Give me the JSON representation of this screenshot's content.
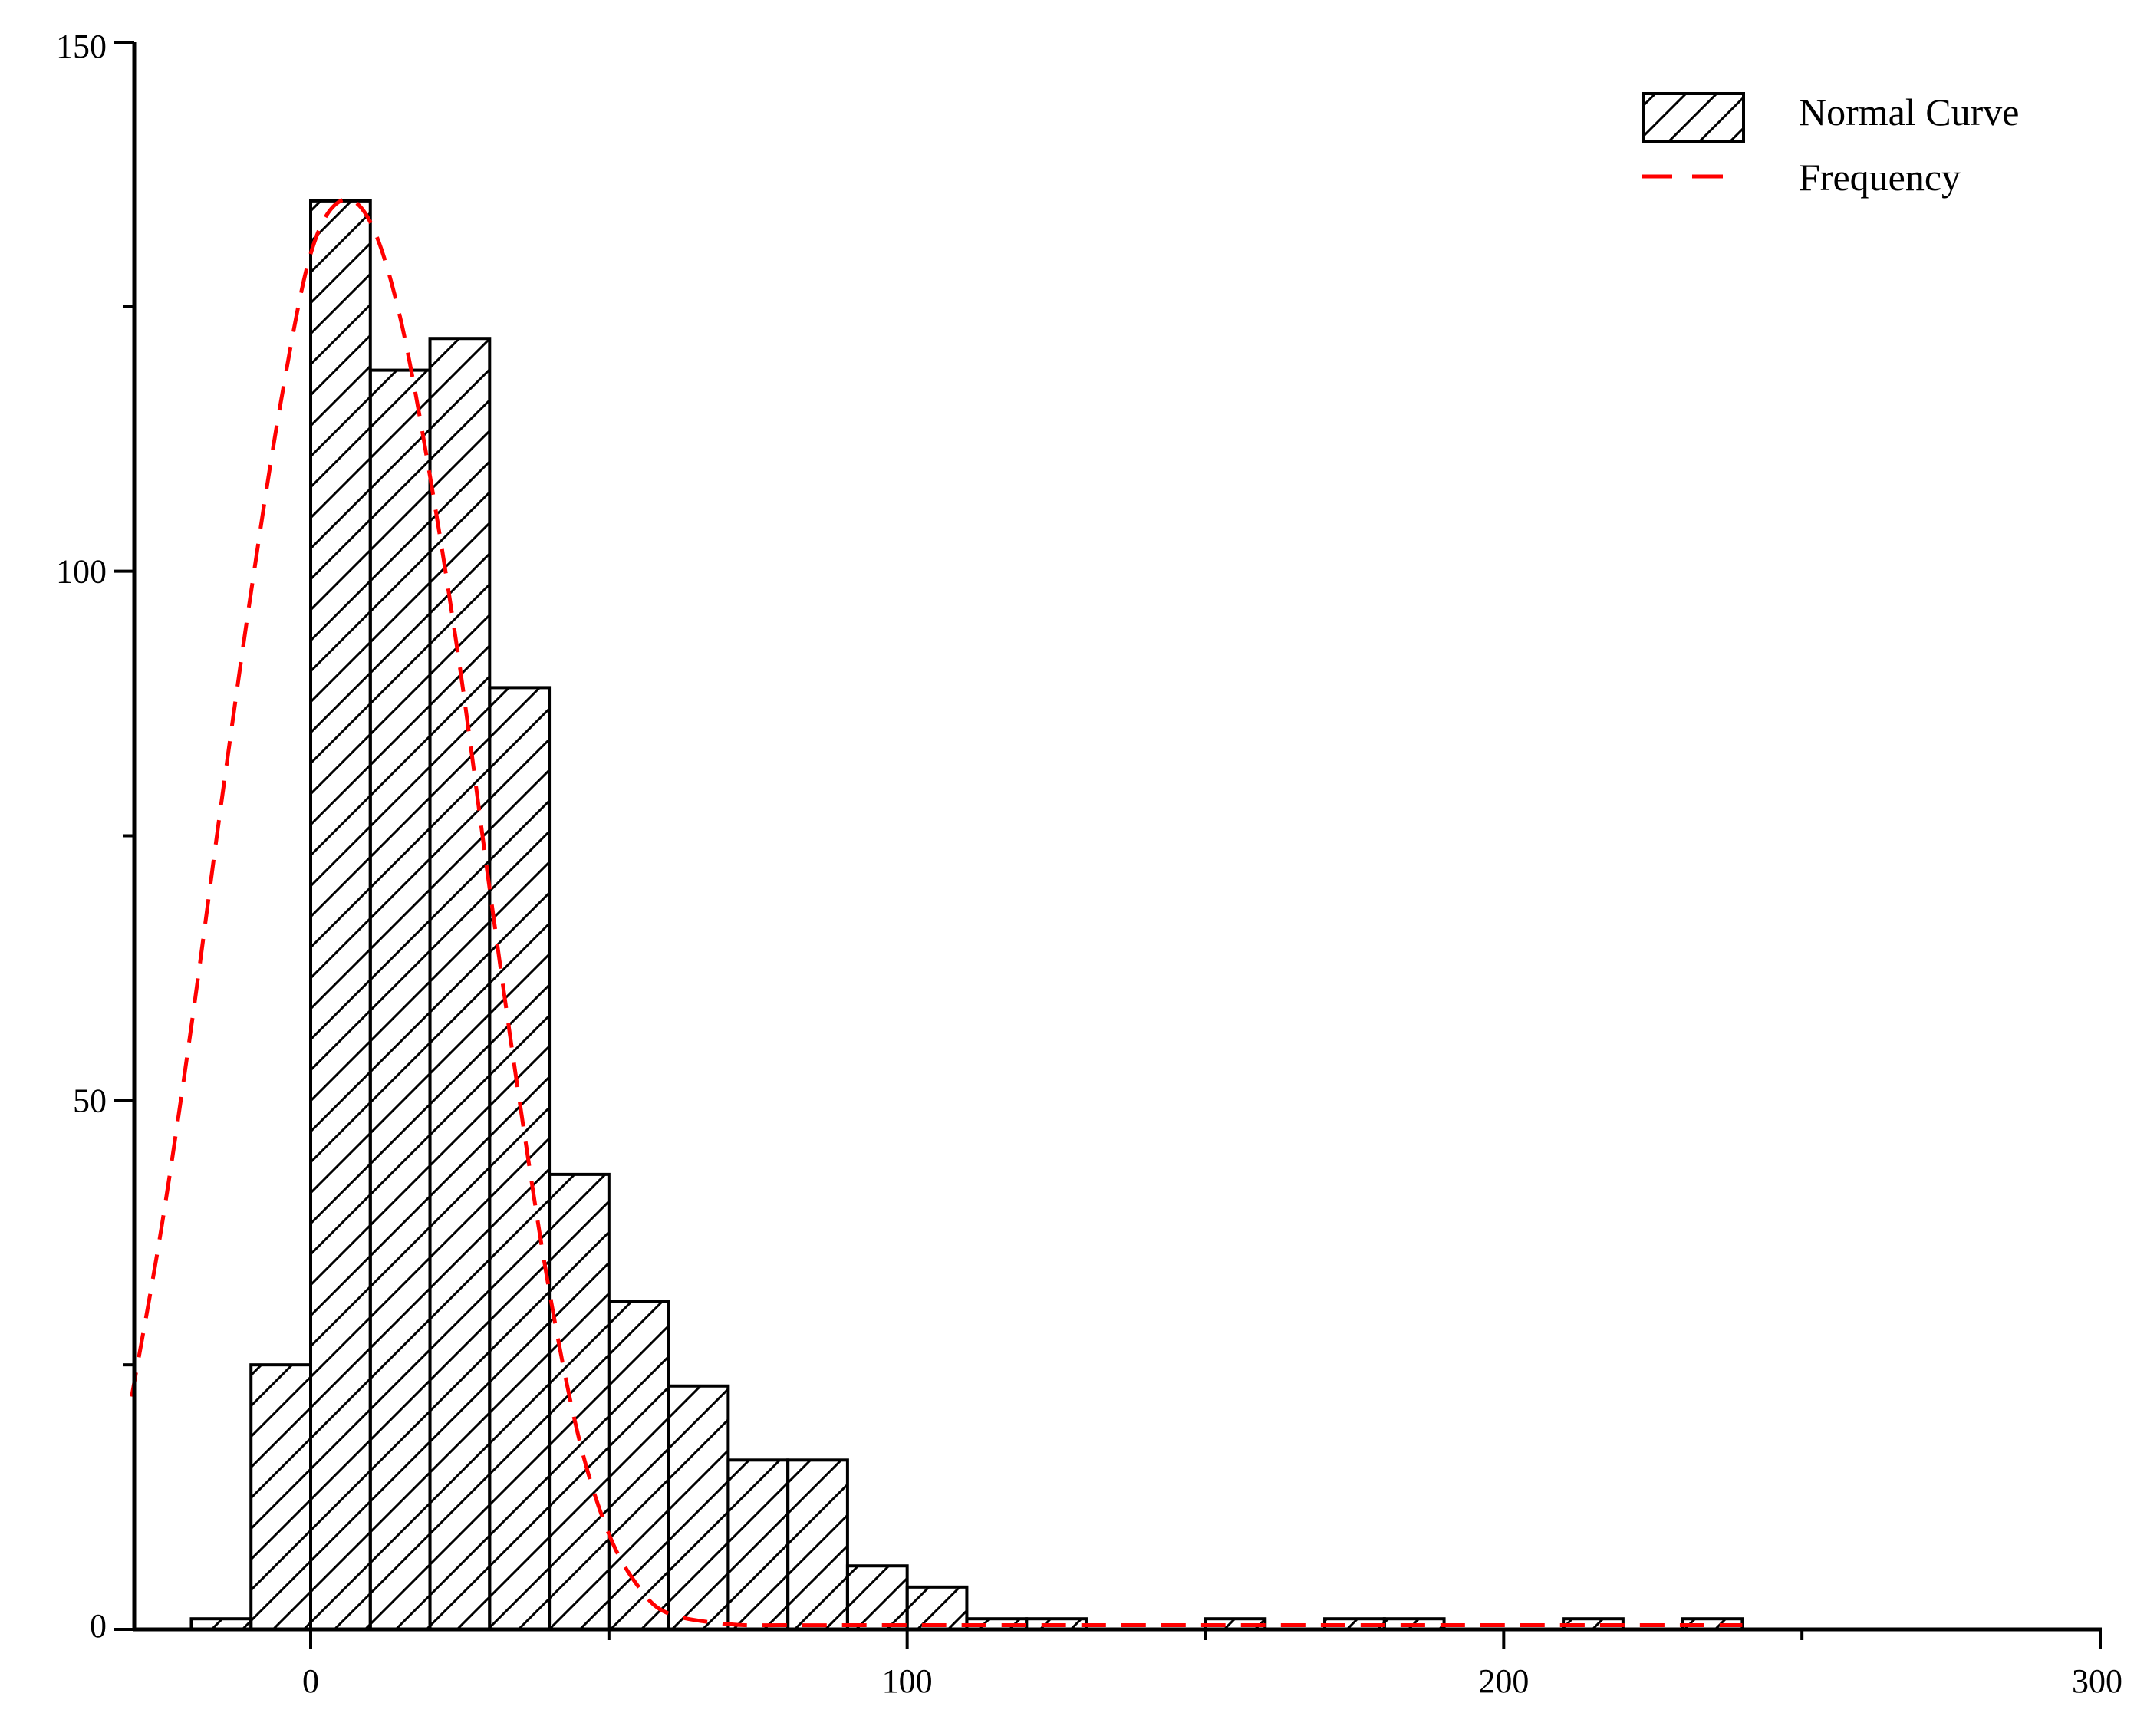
{
  "chart_data": {
    "type": "bar",
    "title": "",
    "xlabel": "",
    "ylabel": "",
    "xlim": [
      -30,
      300
    ],
    "ylim": [
      0,
      150
    ],
    "x_ticks": [
      0,
      100,
      200,
      300
    ],
    "y_ticks": [
      0,
      50,
      100,
      150
    ],
    "bin_width": 10,
    "bins": [
      {
        "start": -20,
        "end": -10,
        "count": 1
      },
      {
        "start": -10,
        "end": 0,
        "count": 25
      },
      {
        "start": 0,
        "end": 10,
        "count": 135
      },
      {
        "start": 10,
        "end": 20,
        "count": 119
      },
      {
        "start": 20,
        "end": 30,
        "count": 122
      },
      {
        "start": 30,
        "end": 40,
        "count": 89
      },
      {
        "start": 40,
        "end": 50,
        "count": 43
      },
      {
        "start": 50,
        "end": 60,
        "count": 31
      },
      {
        "start": 60,
        "end": 70,
        "count": 23
      },
      {
        "start": 70,
        "end": 80,
        "count": 16
      },
      {
        "start": 80,
        "end": 90,
        "count": 16
      },
      {
        "start": 90,
        "end": 100,
        "count": 6
      },
      {
        "start": 100,
        "end": 110,
        "count": 4
      },
      {
        "start": 110,
        "end": 120,
        "count": 1
      },
      {
        "start": 120,
        "end": 130,
        "count": 1
      },
      {
        "start": 150,
        "end": 160,
        "count": 1
      },
      {
        "start": 170,
        "end": 180,
        "count": 1
      },
      {
        "start": 180,
        "end": 190,
        "count": 1
      },
      {
        "start": 210,
        "end": 220,
        "count": 1
      },
      {
        "start": 230,
        "end": 240,
        "count": 1
      }
    ],
    "curve": {
      "name": "Frequency",
      "color": "#ff0000",
      "style": "dashed",
      "points": [
        [
          -30,
          22
        ],
        [
          -25,
          38
        ],
        [
          -20,
          57
        ],
        [
          -15,
          78
        ],
        [
          -10,
          98
        ],
        [
          -5,
          116
        ],
        [
          0,
          130
        ],
        [
          5,
          135
        ],
        [
          10,
          133
        ],
        [
          15,
          124
        ],
        [
          20,
          109
        ],
        [
          25,
          91
        ],
        [
          30,
          70
        ],
        [
          35,
          50
        ],
        [
          40,
          32
        ],
        [
          45,
          18
        ],
        [
          50,
          9
        ],
        [
          55,
          4
        ],
        [
          60,
          1.5
        ],
        [
          70,
          0.5
        ],
        [
          80,
          0.4
        ],
        [
          100,
          0.4
        ],
        [
          150,
          0.4
        ],
        [
          200,
          0.4
        ],
        [
          240,
          0.4
        ]
      ]
    },
    "legend": {
      "position": "top-right",
      "entries": [
        {
          "label": "Normal Curve",
          "symbol": "hatched-box"
        },
        {
          "label": "Frequency",
          "symbol": "red-dashed-line"
        }
      ]
    },
    "grid": false
  }
}
